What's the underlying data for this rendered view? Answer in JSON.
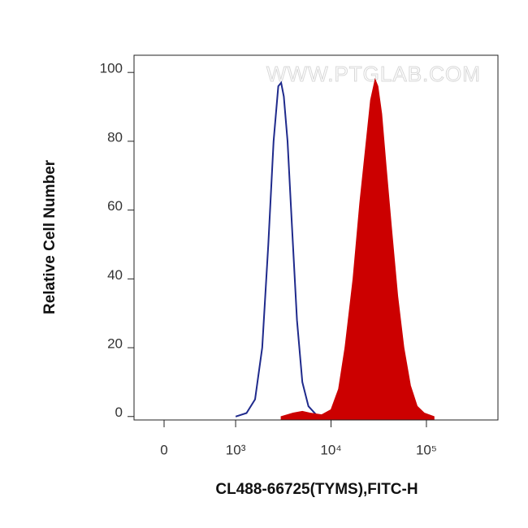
{
  "chart_data": {
    "type": "histogram-overlay",
    "watermark": "WWW.PTGLAB.COM",
    "x_label": "CL488-66725(TYMS),FITC-H",
    "y_label": "Relative Cell Number",
    "xscale": "biexponential",
    "xlim": [
      -420,
      562000
    ],
    "xticks": [
      0,
      {
        "value": 1000,
        "label": "10³"
      },
      {
        "value": 10000,
        "label": "10⁴"
      },
      {
        "value": 100000,
        "label": "10⁵"
      }
    ],
    "ylim": [
      -1,
      105
    ],
    "yticks": [
      0,
      20,
      40,
      60,
      80,
      100
    ],
    "series": [
      {
        "style": "line",
        "color": "#1f2a8c",
        "x": [
          1000,
          1300,
          1600,
          1900,
          2200,
          2500,
          2800,
          3000,
          3200,
          3500,
          3900,
          4400,
          5000,
          5800,
          7000,
          8500
        ],
        "values": [
          0,
          1,
          5,
          20,
          50,
          80,
          96,
          97,
          93,
          80,
          55,
          28,
          10,
          3,
          0.5,
          0
        ]
      },
      {
        "style": "area",
        "color": "#cc0000",
        "x": [
          3000,
          4000,
          5000,
          6000,
          8000,
          10000,
          12000,
          14000,
          17000,
          20000,
          23000,
          26000,
          29000,
          31000,
          34000,
          38000,
          43000,
          50000,
          58000,
          68000,
          80000,
          95000,
          120000
        ],
        "values": [
          0,
          1,
          1.5,
          1,
          0.5,
          2,
          8,
          20,
          40,
          62,
          78,
          92,
          98,
          96,
          88,
          72,
          55,
          35,
          20,
          9,
          3,
          1,
          0
        ]
      }
    ]
  }
}
